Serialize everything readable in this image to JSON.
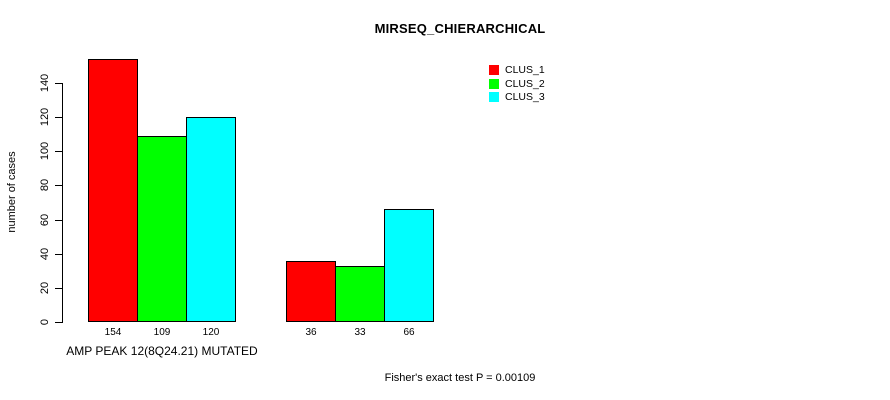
{
  "chart_data": {
    "type": "bar",
    "title": "MIRSEQ_CHIERARCHICAL",
    "ylabel": "number of cases",
    "xlabel": "AMP PEAK 12(8Q24.21) MUTATED",
    "categories": [
      "AMP PEAK 12(8Q24.21) MUTATED",
      ""
    ],
    "series": [
      {
        "name": "CLUS_1",
        "color": "#ff0000",
        "values": [
          154,
          36
        ]
      },
      {
        "name": "CLUS_2",
        "color": "#00ff00",
        "values": [
          109,
          33
        ]
      },
      {
        "name": "CLUS_3",
        "color": "#00ffff",
        "values": [
          120,
          66
        ]
      }
    ],
    "yticks": [
      0,
      20,
      40,
      60,
      80,
      100,
      120,
      140
    ],
    "ylim": [
      0,
      160
    ],
    "grid": false,
    "legend": {
      "position": "top-right-inside",
      "items": [
        {
          "label": "CLUS_1",
          "color": "#ff0000"
        },
        {
          "label": "CLUS_2",
          "color": "#00ff00"
        },
        {
          "label": "CLUS_3",
          "color": "#00ffff"
        }
      ]
    },
    "annotation": "Fisher's exact test P = 0.00109"
  }
}
